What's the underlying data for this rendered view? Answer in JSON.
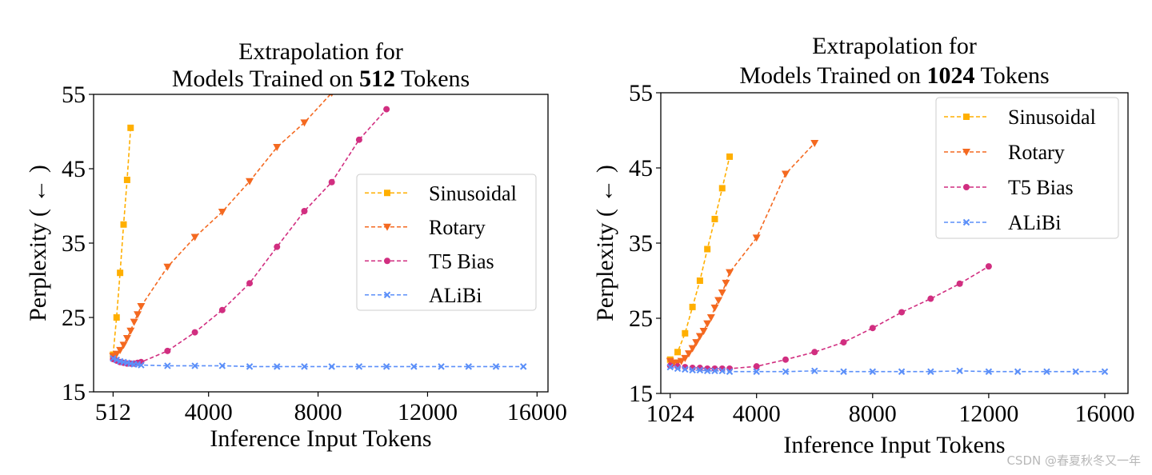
{
  "chart_data": [
    {
      "type": "line",
      "title_line1": "Extrapolation for",
      "title_line2_pre": "Models Trained on ",
      "title_line2_bold": "512",
      "title_line2_post": " Tokens",
      "xlabel": "Inference Input Tokens",
      "ylabel": "Perplexity ( ← )",
      "xlim": [
        -200,
        16400
      ],
      "ylim": [
        15,
        55
      ],
      "xticks": [
        512,
        4000,
        8000,
        12000,
        16000
      ],
      "xtick_labels": [
        "512",
        "4000",
        "8000",
        "12000",
        "16000"
      ],
      "yticks": [
        15,
        25,
        35,
        45,
        55
      ],
      "ytick_labels": [
        "15",
        "25",
        "35",
        "45",
        "55"
      ],
      "legend_position": "center-right",
      "series": [
        {
          "name": "Sinusoidal",
          "color": "#FFAF00",
          "marker": "square",
          "x": [
            512,
            640,
            768,
            896,
            1024,
            1152
          ],
          "y": [
            20.0,
            25.0,
            31.0,
            37.5,
            43.5,
            50.5
          ]
        },
        {
          "name": "Rotary",
          "color": "#F46920",
          "marker": "triangle-down",
          "x": [
            512,
            640,
            768,
            896,
            1024,
            1152,
            1280,
            1408,
            1536,
            2500,
            3500,
            4500,
            5500,
            6500,
            7500,
            8500
          ],
          "y": [
            19.8,
            20.1,
            20.6,
            21.3,
            22.2,
            23.2,
            24.4,
            25.4,
            26.5,
            31.8,
            35.8,
            39.2,
            43.3,
            47.9,
            51.2,
            55.2
          ]
        },
        {
          "name": "T5 Bias",
          "color": "#D12E80",
          "marker": "circle",
          "x": [
            512,
            640,
            768,
            896,
            1024,
            1152,
            1280,
            1408,
            1536,
            2500,
            3500,
            4500,
            5500,
            6500,
            7500,
            8500,
            9500,
            10500
          ],
          "y": [
            19.4,
            19.2,
            19.0,
            18.9,
            18.8,
            18.8,
            18.8,
            18.9,
            19.0,
            20.5,
            23.0,
            26.0,
            29.6,
            34.5,
            39.3,
            43.2,
            48.9,
            53.0
          ]
        },
        {
          "name": "ALiBi",
          "color": "#5B8FF9",
          "marker": "x",
          "x": [
            512,
            640,
            768,
            896,
            1024,
            1152,
            1280,
            1408,
            1536,
            2500,
            3500,
            4500,
            5500,
            6500,
            7500,
            8500,
            9500,
            10500,
            11500,
            12500,
            13500,
            14500,
            15500
          ],
          "y": [
            19.5,
            19.3,
            19.1,
            19.0,
            18.9,
            18.8,
            18.7,
            18.7,
            18.6,
            18.5,
            18.5,
            18.5,
            18.4,
            18.4,
            18.4,
            18.4,
            18.4,
            18.4,
            18.4,
            18.4,
            18.4,
            18.4,
            18.4
          ]
        }
      ]
    },
    {
      "type": "line",
      "title_line1": "Extrapolation for",
      "title_line2_pre": "Models Trained on ",
      "title_line2_bold": "1024",
      "title_line2_post": " Tokens",
      "xlabel": "Inference Input Tokens",
      "ylabel": "Perplexity ( ← )",
      "xlim": [
        700,
        16800
      ],
      "ylim": [
        15,
        55
      ],
      "xticks": [
        1024,
        4000,
        8000,
        12000,
        16000
      ],
      "xtick_labels": [
        "1024",
        "4000",
        "8000",
        "12000",
        "16000"
      ],
      "yticks": [
        15,
        25,
        35,
        45,
        55
      ],
      "ytick_labels": [
        "15",
        "25",
        "35",
        "45",
        "55"
      ],
      "legend_position": "upper-right",
      "series": [
        {
          "name": "Sinusoidal",
          "color": "#FFAF00",
          "marker": "square",
          "x": [
            1024,
            1280,
            1536,
            1792,
            2048,
            2304,
            2560,
            2816,
            3072
          ],
          "y": [
            19.5,
            20.5,
            23.0,
            26.5,
            30.0,
            34.2,
            38.2,
            42.3,
            46.5
          ]
        },
        {
          "name": "Rotary",
          "color": "#F46920",
          "marker": "triangle-down",
          "x": [
            1024,
            1152,
            1280,
            1408,
            1536,
            1664,
            1792,
            1920,
            2048,
            2176,
            2304,
            2432,
            2560,
            2688,
            2816,
            2944,
            3072,
            4000,
            5000,
            6000
          ],
          "y": [
            19.3,
            19.1,
            19.1,
            19.3,
            19.7,
            20.3,
            21.0,
            21.8,
            22.6,
            23.3,
            24.3,
            25.1,
            26.4,
            27.4,
            28.4,
            29.7,
            31.1,
            35.7,
            44.2,
            48.3
          ]
        },
        {
          "name": "T5 Bias",
          "color": "#D12E80",
          "marker": "circle",
          "x": [
            1024,
            1280,
            1536,
            1792,
            2048,
            2304,
            2560,
            2816,
            3072,
            4000,
            5000,
            6000,
            7000,
            8000,
            9000,
            10000,
            11000,
            12000
          ],
          "y": [
            18.7,
            18.6,
            18.5,
            18.4,
            18.4,
            18.3,
            18.3,
            18.3,
            18.3,
            18.6,
            19.5,
            20.5,
            21.8,
            23.7,
            25.8,
            27.6,
            29.6,
            31.9
          ]
        },
        {
          "name": "ALiBi",
          "color": "#5B8FF9",
          "marker": "x",
          "x": [
            1024,
            1280,
            1536,
            1792,
            2048,
            2304,
            2560,
            2816,
            3072,
            4000,
            5000,
            6000,
            7000,
            8000,
            9000,
            10000,
            11000,
            12000,
            13000,
            14000,
            15000,
            16000
          ],
          "y": [
            18.5,
            18.3,
            18.2,
            18.1,
            18.1,
            18.0,
            18.0,
            18.0,
            17.9,
            17.9,
            17.9,
            18.0,
            17.9,
            17.9,
            17.9,
            17.9,
            18.0,
            17.9,
            17.9,
            17.9,
            17.9,
            17.9
          ]
        }
      ]
    }
  ],
  "watermark": "CSDN @春夏秋冬又一年"
}
